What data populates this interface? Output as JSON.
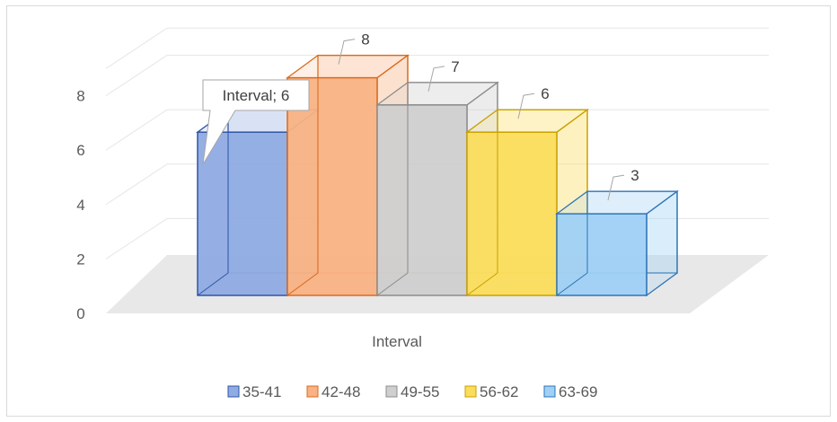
{
  "chart_data": {
    "type": "bar",
    "subtype": "3d-clustered-column",
    "title": "",
    "xlabel": "Interval",
    "ylabel": "",
    "ylim": [
      0,
      8
    ],
    "yticks": [
      0,
      2,
      4,
      6,
      8
    ],
    "grid": true,
    "legend_position": "bottom",
    "series": [
      {
        "name": "35-41",
        "value": 6,
        "fill": "#8fabe3",
        "stroke": "#2f55a4"
      },
      {
        "name": "42-48",
        "value": 8,
        "fill": "#f9b284",
        "stroke": "#d96a1f"
      },
      {
        "name": "49-55",
        "value": 7,
        "fill": "#cfcfcf",
        "stroke": "#8c8c8c"
      },
      {
        "name": "56-62",
        "value": 6,
        "fill": "#fbdd5c",
        "stroke": "#c9a000"
      },
      {
        "name": "63-69",
        "value": 3,
        "fill": "#9fd0f5",
        "stroke": "#2e75b6"
      }
    ],
    "data_labels": [
      "Interval; 6",
      "8",
      "7",
      "6",
      "3"
    ]
  }
}
